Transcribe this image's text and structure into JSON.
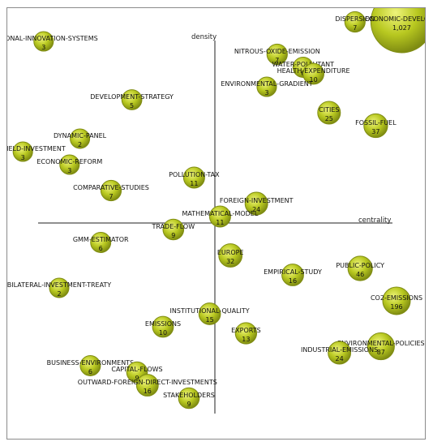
{
  "chart_data": {
    "type": "scatter",
    "title": "",
    "xlabel": "centrality",
    "ylabel": "density",
    "colors": {
      "bubble": "#b8c820",
      "bubble_edge": "#7f8c12",
      "axis": "#222222"
    },
    "points": [
      {
        "name": "ECONOMIC-DEVELOPMENT",
        "label": "ECONOMIC-DEVELOPM",
        "count": "1,027",
        "n": 1027,
        "x": 3.6,
        "y": 3.1
      },
      {
        "name": "DISPERSION",
        "label": "DISPERSION",
        "count": "7",
        "n": 7,
        "x": 2.7,
        "y": 3.1
      },
      {
        "name": "REGIONAL-INNOVATION-SYSTEMS",
        "label": "REGIONAL-INNOVATION-SYSTEMS",
        "count": "3",
        "n": 3,
        "x": -3.3,
        "y": 2.8
      },
      {
        "name": "NITROUS-OXIDE-EMISSION",
        "label": "NITROUS-OXIDE-EMISSION",
        "count": "7",
        "n": 7,
        "x": 1.2,
        "y": 2.6
      },
      {
        "name": "WATER-POLLUTANT",
        "label": "WATER-POLLUTANT",
        "count": "6",
        "n": 6,
        "x": 1.7,
        "y": 2.4
      },
      {
        "name": "HEALTH-EXPENDITURE",
        "label": "HEALTH-EXPENDITURE",
        "count": "10",
        "n": 10,
        "x": 1.9,
        "y": 2.3
      },
      {
        "name": "ENVIRONMENTAL-GRADIENT",
        "label": "ENVIRONMENTAL-GRADIENT",
        "count": "3",
        "n": 3,
        "x": 1.0,
        "y": 2.1
      },
      {
        "name": "DEVELOPMENT-STRATEGY",
        "label": "DEVELOPMENT-STRATEGY",
        "count": "5",
        "n": 5,
        "x": -1.6,
        "y": 1.9
      },
      {
        "name": "CITIES",
        "label": "CITIES",
        "count": "25",
        "n": 25,
        "x": 2.2,
        "y": 1.7
      },
      {
        "name": "FOSSIL-FUEL",
        "label": "FOSSIL-FUEL",
        "count": "37",
        "n": 37,
        "x": 3.1,
        "y": 1.5
      },
      {
        "name": "DYNAMIC-PANEL",
        "label": "DYNAMIC-PANEL",
        "count": "2",
        "n": 2,
        "x": -2.6,
        "y": 1.3
      },
      {
        "name": "GREENFIELD-INVESTMENT",
        "label": "GREENFIELD-INVESTMENT",
        "count": "3",
        "n": 3,
        "x": -3.7,
        "y": 1.1
      },
      {
        "name": "ECONOMIC-REFORM",
        "label": "ECONOMIC-REFORM",
        "count": "3",
        "n": 3,
        "x": -2.8,
        "y": 0.9
      },
      {
        "name": "POLLUTION-TAX",
        "label": "POLLUTION-TAX",
        "count": "11",
        "n": 11,
        "x": -0.4,
        "y": 0.7
      },
      {
        "name": "COMPARATIVE-STUDIES",
        "label": "COMPARATIVE-STUDIES",
        "count": "7",
        "n": 7,
        "x": -2.0,
        "y": 0.5
      },
      {
        "name": "FOREIGN-INVESTMENT",
        "label": "FOREIGN-INVESTMENT",
        "count": "24",
        "n": 24,
        "x": 0.8,
        "y": 0.3
      },
      {
        "name": "MATHEMATICAL-MODEL",
        "label": "MATHEMATICAL-MODEL",
        "count": "11",
        "n": 11,
        "x": 0.1,
        "y": 0.1
      },
      {
        "name": "TRADE-FLOW",
        "label": "TRADE-FLOW",
        "count": "9",
        "n": 9,
        "x": -0.8,
        "y": -0.1
      },
      {
        "name": "GMM-ESTIMATOR",
        "label": "GMM-ESTIMATOR",
        "count": "6",
        "n": 6,
        "x": -2.2,
        "y": -0.3
      },
      {
        "name": "EUROPE",
        "label": "EUROPE",
        "count": "32",
        "n": 32,
        "x": 0.3,
        "y": -0.5
      },
      {
        "name": "PUBLIC-POLICY",
        "label": "PUBLIC-POLICY",
        "count": "46",
        "n": 46,
        "x": 2.8,
        "y": -0.7
      },
      {
        "name": "EMPIRICAL-STUDY",
        "label": "EMPIRICAL-STUDY",
        "count": "16",
        "n": 16,
        "x": 1.5,
        "y": -0.8
      },
      {
        "name": "BILATERAL-INVESTMENT-TREATY",
        "label": "BILATERAL-INVESTMENT-TREATY",
        "count": "2",
        "n": 2,
        "x": -3.0,
        "y": -1.0
      },
      {
        "name": "CO2-EMISSIONS",
        "label": "CO2-EMISSIONS",
        "count": "196",
        "n": 196,
        "x": 3.5,
        "y": -1.2
      },
      {
        "name": "INSTITUTIONAL-QUALITY",
        "label": "INSTITUTIONAL-QUALITY",
        "count": "15",
        "n": 15,
        "x": -0.1,
        "y": -1.4
      },
      {
        "name": "EMISSIONS",
        "label": "EMISSIONS",
        "count": "10",
        "n": 10,
        "x": -1.0,
        "y": -1.6
      },
      {
        "name": "EXPORTS",
        "label": "EXPORTS",
        "count": "13",
        "n": 13,
        "x": 0.6,
        "y": -1.7
      },
      {
        "name": "ENVIRONMENTAL-POLICIES",
        "label": "ENVIRONMENTAL-POLICIES",
        "count": "87",
        "n": 87,
        "x": 3.2,
        "y": -1.9
      },
      {
        "name": "INDUSTRIAL-EMISSIONS",
        "label": "INDUSTRIAL-EMISSIONS",
        "count": "24",
        "n": 24,
        "x": 2.4,
        "y": -2.0
      },
      {
        "name": "BUSINESS-ENVIRONMENTS",
        "label": "BUSINESS-ENVIRONMENTS",
        "count": "6",
        "n": 6,
        "x": -2.4,
        "y": -2.2
      },
      {
        "name": "CAPITAL-FLOWS",
        "label": "CAPITAL-FLOWS",
        "count": "9",
        "n": 9,
        "x": -1.5,
        "y": -2.3
      },
      {
        "name": "OUTWARD-FOREIGN-DIRECT-INVESTMENTS",
        "label": "OUTWARD-FOREIGN-DIRECT-INVESTMENTS",
        "count": "16",
        "n": 16,
        "x": -1.3,
        "y": -2.5
      },
      {
        "name": "STAKEHOLDERS",
        "label": "STAKEHOLDERS",
        "count": "9",
        "n": 9,
        "x": -0.5,
        "y": -2.7
      }
    ]
  }
}
